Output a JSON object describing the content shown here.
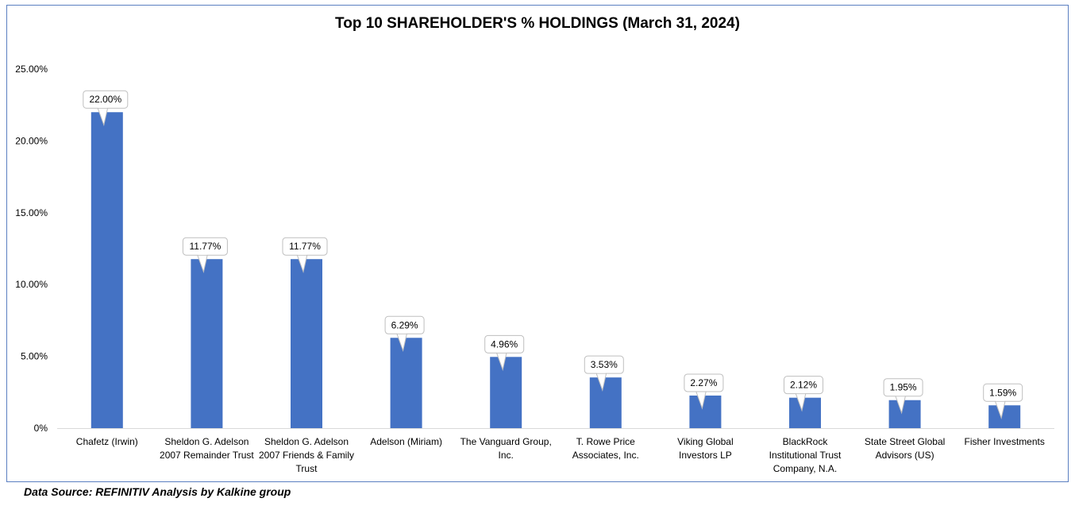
{
  "chart_data": {
    "type": "bar",
    "title": "Top 10 SHAREHOLDER'S % HOLDINGS (March 31, 2024)",
    "categories": [
      [
        "Chafetz (Irwin)"
      ],
      [
        "Sheldon G. Adelson",
        "2007 Remainder Trust"
      ],
      [
        "Sheldon G. Adelson",
        "2007 Friends & Family",
        "Trust"
      ],
      [
        "Adelson (Miriam)"
      ],
      [
        "The Vanguard Group,",
        "Inc."
      ],
      [
        "T. Rowe Price",
        "Associates, Inc."
      ],
      [
        "Viking Global",
        "Investors LP"
      ],
      [
        "BlackRock",
        "Institutional Trust",
        "Company, N.A."
      ],
      [
        "State Street Global",
        "Advisors (US)"
      ],
      [
        "Fisher Investments"
      ]
    ],
    "values": [
      22.0,
      11.77,
      11.77,
      6.29,
      4.96,
      3.53,
      2.27,
      2.12,
      1.95,
      1.59
    ],
    "data_labels": [
      "22.00%",
      "11.77%",
      "11.77%",
      "6.29%",
      "4.96%",
      "3.53%",
      "2.27%",
      "2.12%",
      "1.95%",
      "1.59%"
    ],
    "y_ticks": [
      0,
      5,
      10,
      15,
      20,
      25
    ],
    "y_tick_labels": [
      "0%",
      "5.00%",
      "10.00%",
      "15.00%",
      "20.00%",
      "25.00%"
    ],
    "ylim": [
      0,
      25
    ],
    "grid": false,
    "legend": "none",
    "bar_color": "#4472c4",
    "xlabel": "",
    "ylabel": ""
  },
  "source_text": "Data Source: REFINITIV Analysis by Kalkine group"
}
